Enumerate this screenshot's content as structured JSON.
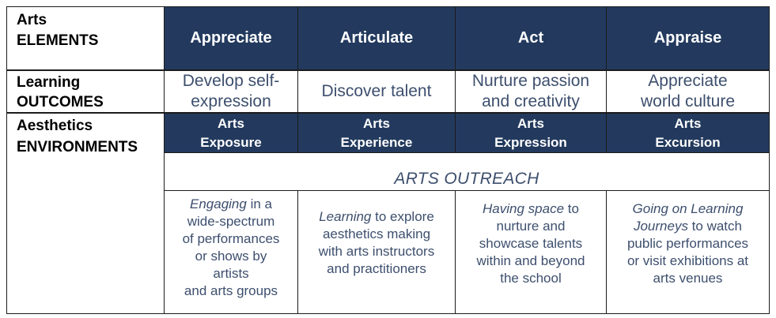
{
  "row_labels": {
    "elements": {
      "line1": "Arts",
      "line2": "ELEMENTS"
    },
    "outcomes": {
      "line1": "Learning",
      "line2": "OUTCOMES"
    },
    "environments": {
      "line1": "Aesthetics",
      "line2": "ENVIRONMENTS"
    }
  },
  "elements": [
    "Appreciate",
    "Articulate",
    "Act",
    "Appraise"
  ],
  "outcomes": [
    {
      "line1": "Develop self-",
      "line2": "expression"
    },
    {
      "line1": "Discover talent",
      "line2": ""
    },
    {
      "line1": "Nurture passion",
      "line2": "and creativity"
    },
    {
      "line1": "Appreciate",
      "line2": "world culture"
    }
  ],
  "environments": [
    {
      "line1": "Arts",
      "line2": "Exposure"
    },
    {
      "line1": "Arts",
      "line2": "Experience"
    },
    {
      "line1": "Arts",
      "line2": "Expression"
    },
    {
      "line1": "Arts",
      "line2": "Excursion"
    }
  ],
  "outreach_label": "ARTS OUTREACH",
  "descriptions": [
    {
      "em": "Engaging",
      "lines": [
        " in a",
        "wide-spectrum",
        "of performances",
        "or shows by",
        "artists",
        "and arts groups"
      ]
    },
    {
      "em": "Learning",
      "lines": [
        " to explore",
        "aesthetics making",
        "with arts instructors",
        "and practitioners"
      ]
    },
    {
      "em": "Having space",
      "lines": [
        " to",
        "nurture and",
        "showcase talents",
        "within and beyond",
        "the school"
      ]
    },
    {
      "em": "Going on Learning",
      "em2": "Journeys",
      "lines": [
        " to watch",
        "public performances",
        "or visit exhibitions at",
        "arts venues"
      ]
    }
  ],
  "colors": {
    "header_bg": "#233a5e",
    "header_text": "#ffffff",
    "body_text": "#3d4f6e",
    "border": "#1c1c1c"
  }
}
